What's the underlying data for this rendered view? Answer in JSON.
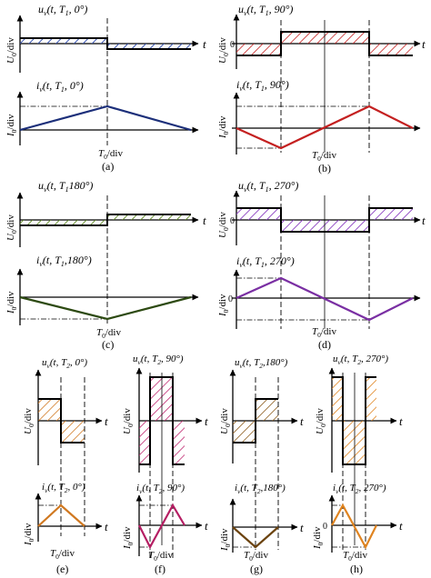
{
  "colors": {
    "a": "#1c2f7a",
    "b": "#c42020",
    "c": "#2d4a12",
    "d": "#7a2fa3",
    "e": "#d07820",
    "f": "#b51e63",
    "g": "#6b4310",
    "h": "#e08420",
    "hatch_a": "#3a55b0",
    "hatch_b": "#c42020",
    "hatch_c": "#5f8a25",
    "hatch_d": "#8a3fc0",
    "hatch_e": "#d07820",
    "hatch_f": "#c02870",
    "hatch_g": "#8b5a1a",
    "hatch_h": "#e08420"
  },
  "panels": [
    {
      "id": "a",
      "tag": "(a)",
      "u_label": "u_v(t, T_1, 0°)",
      "i_label": "i_v(t, T_1, 0°)",
      "u_axis": "U_0/div",
      "i_axis": "I_0/div",
      "t_axis": "T_0/div",
      "t_symbol": "t"
    },
    {
      "id": "b",
      "tag": "(b)",
      "u_label": "u_v(t, T_1, 90°)",
      "i_label": "i_v(t, T_1, 90°)",
      "u_axis": "U_0/div",
      "i_axis": "I_0/div",
      "t_axis": "T_0/div",
      "t_symbol": "t"
    },
    {
      "id": "c",
      "tag": "(c)",
      "u_label": "u_v(t, T_1, 180°)",
      "i_label": "i_v(t, T_1, 180°)",
      "u_axis": "U_0/div",
      "i_axis": "I_0/div",
      "t_axis": "T_0/div",
      "t_symbol": "t"
    },
    {
      "id": "d",
      "tag": "(d)",
      "u_label": "u_v(t, T_1, 270°)",
      "i_label": "i_v(t, T_1, 270°)",
      "u_axis": "U_0/div",
      "i_axis": "I_0/div",
      "t_axis": "T_0/div",
      "t_symbol": "t"
    },
    {
      "id": "e",
      "tag": "(e)",
      "u_label": "u_v(t, T_2, 0°)",
      "i_label": "i_v(t, T_2, 0°)",
      "u_axis": "U_0/div",
      "i_axis": "I_0/div",
      "t_axis": "T_0/div",
      "t_symbol": "t"
    },
    {
      "id": "f",
      "tag": "(f)",
      "u_label": "u_v(t, T_2, 90°)",
      "i_label": "i_v(t, T_2, 90°)",
      "u_axis": "U_0/div",
      "i_axis": "I_0/div",
      "t_axis": "T_0/div",
      "t_symbol": "t"
    },
    {
      "id": "g",
      "tag": "(g)",
      "u_label": "u_v(t, T_2, 180°)",
      "i_label": "i_v(t, T_2, 180°)",
      "u_axis": "U_0/div",
      "i_axis": "I_0/div",
      "t_axis": "T_0/div",
      "t_symbol": "t"
    },
    {
      "id": "h",
      "tag": "(h)",
      "u_label": "u_v(t, T_2, 270°)",
      "i_label": "i_v(t, T_2, 270°)",
      "u_axis": "U_0/div",
      "i_axis": "I_0/div",
      "t_axis": "T_0/div",
      "t_symbol": "t"
    }
  ]
}
